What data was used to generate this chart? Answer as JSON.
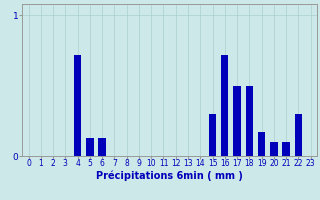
{
  "title": "",
  "xlabel": "Précipitations 6min ( mm )",
  "background_color": "#cce8e8",
  "plot_background": "#cce8e8",
  "bar_color": "#0000bb",
  "hours": [
    0,
    1,
    2,
    3,
    4,
    5,
    6,
    7,
    8,
    9,
    10,
    11,
    12,
    13,
    14,
    15,
    16,
    17,
    18,
    19,
    20,
    21,
    22,
    23
  ],
  "values": [
    0,
    0,
    0,
    0,
    0.72,
    0.13,
    0.13,
    0,
    0,
    0,
    0,
    0,
    0,
    0,
    0,
    0.3,
    0.72,
    0.5,
    0.5,
    0.17,
    0.1,
    0.1,
    0.3,
    0
  ],
  "ylim": [
    0,
    1.08
  ],
  "yticks": [
    0,
    1
  ],
  "ytick_labels": [
    "0",
    "1"
  ],
  "grid_color": "#aacfcf",
  "xlabel_color": "#0000bb",
  "tick_color": "#0000bb",
  "axis_color": "#999999",
  "bar_width": 0.6,
  "tick_fontsize": 5.5,
  "xlabel_fontsize": 7.0,
  "ytick_fontsize": 6.5
}
